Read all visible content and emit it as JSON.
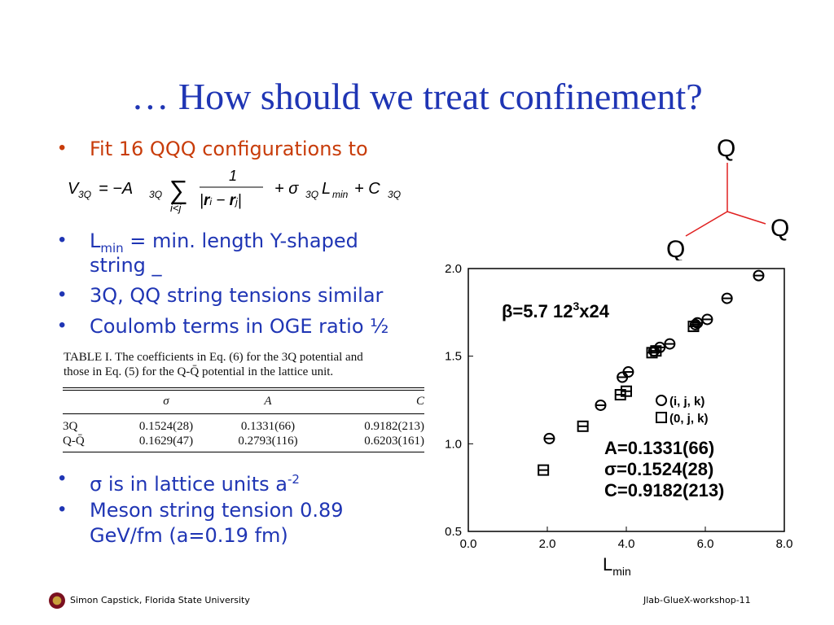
{
  "slide": {
    "title": "… How should we treat confinement?",
    "bullets_top": [
      {
        "text": "Fit 16 QQQ configurations to",
        "color": "#c83c0a"
      }
    ],
    "equation": "V₃Q = −A₃Q Σ 1/|rᵢ − rⱼ| + σ₃Q L_min + C₃Q",
    "bullets_mid": [
      {
        "pre": "L",
        "sub": "min",
        "post": " = min. length Y-shaped"
      },
      {
        "text": "string _"
      },
      {
        "text": "3Q, QQ string tensions similar"
      },
      {
        "text": "Coulomb terms in OGE ratio ½"
      }
    ],
    "table": {
      "caption_line1": "TABLE I.    The coefficients in Eq. (6) for the 3Q potential and",
      "caption_line2": "those in Eq. (5) for the Q-Q̄ potential in the lattice unit.",
      "headers": [
        "",
        "σ",
        "A",
        "C"
      ],
      "rows": [
        [
          "3Q",
          "0.1524(28)",
          "0.1331(66)",
          "0.9182(213)"
        ],
        [
          "Q-Q̄",
          "0.1629(47)",
          "0.2793(116)",
          "0.6203(161)"
        ]
      ]
    },
    "bullets_bottom": [
      {
        "text": " σ is in lattice units a",
        "sup": "-2"
      },
      {
        "text": "Meson string tension 0.89"
      },
      {
        "text": "GeV/fm (a=0.19 fm)"
      }
    ],
    "footer_left": "Simon Capstick, Florida State University",
    "footer_right": "Jlab-GlueX-workshop-11"
  },
  "diagram": {
    "labels": [
      "Q",
      "Q",
      "Q"
    ],
    "line_color": "#e02020"
  },
  "chart_data": {
    "type": "scatter",
    "xlabel": "L",
    "xlabel_sub": "min",
    "xlim": [
      0.0,
      8.0
    ],
    "ylim": [
      0.5,
      2.0
    ],
    "x_ticks": [
      "0.0",
      "2.0",
      "4.0",
      "6.0",
      "8.0"
    ],
    "y_ticks": [
      "0.5",
      "1.0",
      "1.5",
      "2.0"
    ],
    "annotation_beta": "β=5.7 12",
    "annotation_beta_sup": "3",
    "annotation_beta_tail": "x24",
    "legend": [
      "(i, j, k)",
      "(0, j, k)"
    ],
    "fit_text": [
      "A=0.1331(66)",
      "σ=0.1524(28)",
      "C=0.9182(213)"
    ],
    "series": [
      {
        "name": "(i, j, k)",
        "marker": "circle",
        "points": [
          [
            2.05,
            1.03
          ],
          [
            3.35,
            1.22
          ],
          [
            3.9,
            1.38
          ],
          [
            4.05,
            1.41
          ],
          [
            4.7,
            1.53
          ],
          [
            4.85,
            1.55
          ],
          [
            5.1,
            1.57
          ],
          [
            5.75,
            1.68
          ],
          [
            5.8,
            1.69
          ],
          [
            6.05,
            1.71
          ],
          [
            6.55,
            1.83
          ],
          [
            7.35,
            1.96
          ]
        ]
      },
      {
        "name": "(0, j, k)",
        "marker": "square",
        "points": [
          [
            1.9,
            0.85
          ],
          [
            2.9,
            1.1
          ],
          [
            3.85,
            1.28
          ],
          [
            4.0,
            1.3
          ],
          [
            4.65,
            1.52
          ],
          [
            4.75,
            1.53
          ],
          [
            5.7,
            1.67
          ]
        ]
      }
    ]
  }
}
